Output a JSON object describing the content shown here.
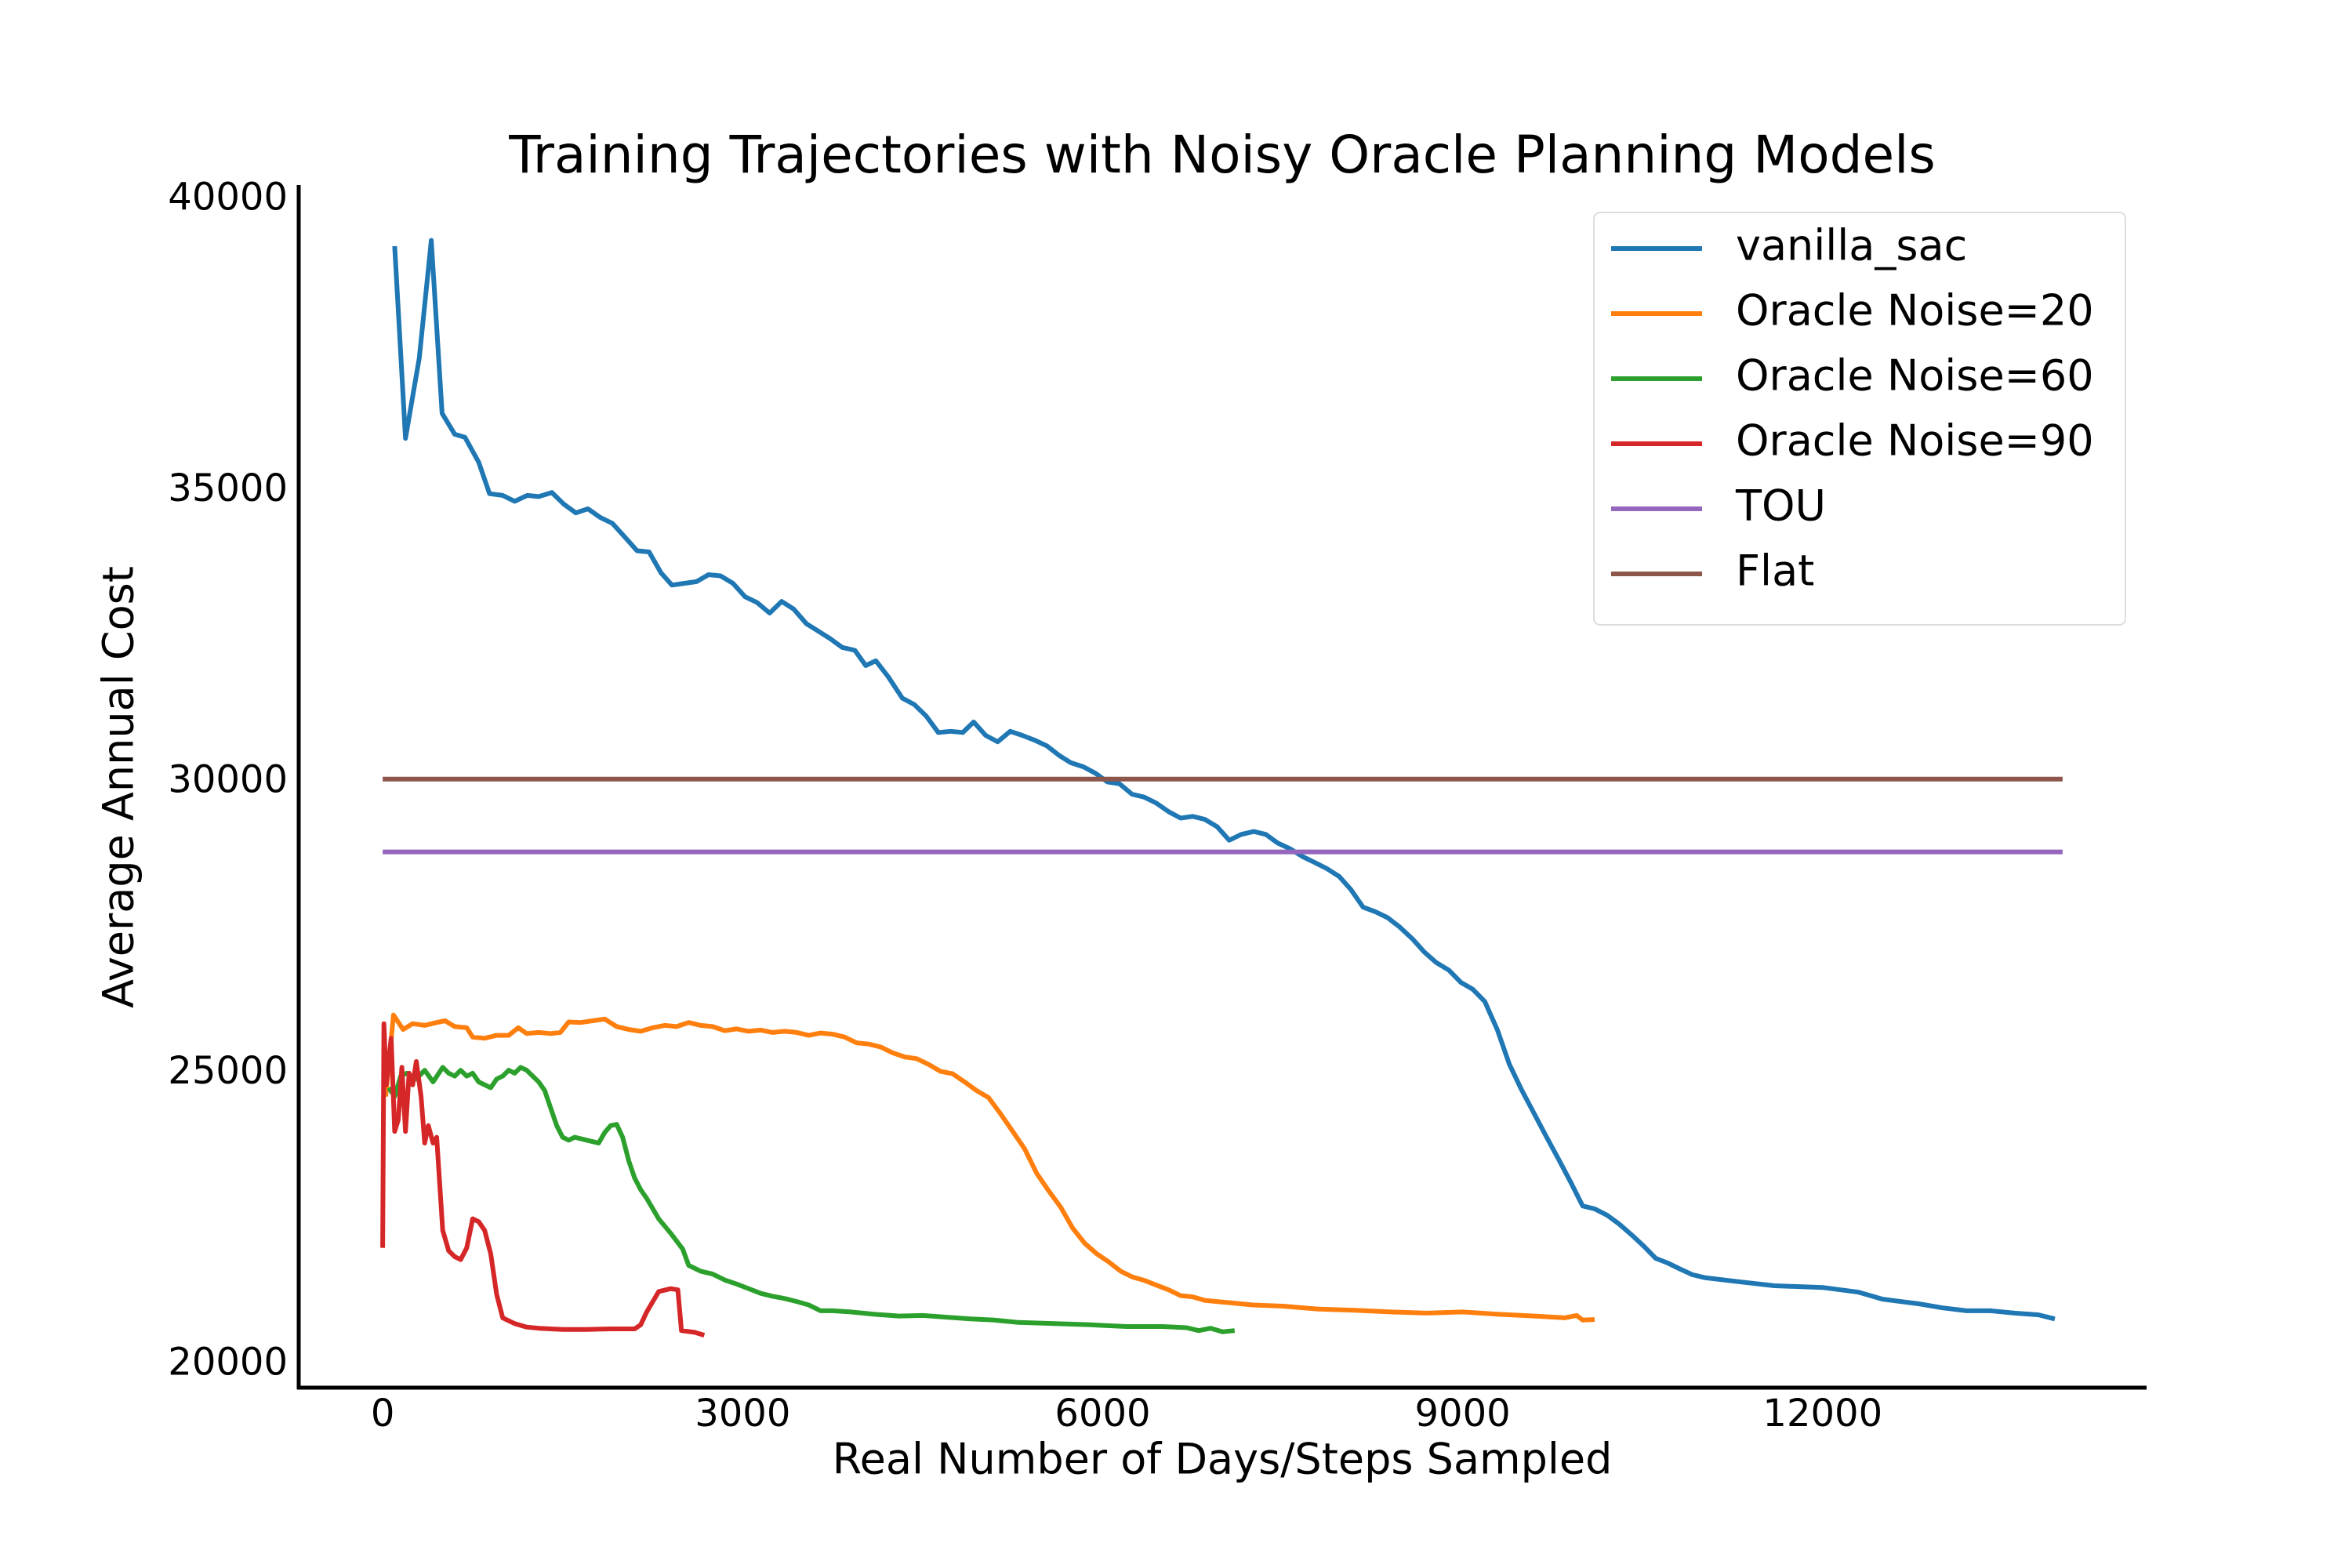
{
  "chart_data": {
    "type": "line",
    "title": "Training Trajectories with Noisy Oracle Planning Models",
    "x_label": "Real Number of Days/Steps Sampled",
    "y_label": "Average Annual Cost",
    "xlim": [
      -700,
      14700
    ],
    "ylim": [
      19600,
      40250
    ],
    "xticks": [
      0,
      3000,
      6000,
      9000,
      12000
    ],
    "yticks": [
      20000,
      25000,
      30000,
      35000,
      40000
    ],
    "grid": false,
    "legend_position": "upper right",
    "series": [
      {
        "name": "vanilla_sac",
        "color": "#1f77b4",
        "x": [
          100,
          190,
          305,
          405,
          495,
          600,
          685,
          800,
          890,
          1000,
          1100,
          1205,
          1300,
          1410,
          1510,
          1610,
          1710,
          1815,
          1915,
          2020,
          2120,
          2220,
          2320,
          2410,
          2510,
          2615,
          2715,
          2815,
          2920,
          3020,
          3120,
          3225,
          3325,
          3425,
          3530,
          3630,
          3730,
          3830,
          3935,
          4025,
          4110,
          4215,
          4330,
          4430,
          4530,
          4630,
          4735,
          4835,
          4925,
          5025,
          5125,
          5230,
          5330,
          5430,
          5535,
          5635,
          5735,
          5840,
          5940,
          6040,
          6140,
          6245,
          6345,
          6445,
          6550,
          6650,
          6750,
          6850,
          6955,
          7055,
          7155,
          7260,
          7360,
          7460,
          7565,
          7665,
          7765,
          7870,
          7970,
          8070,
          8170,
          8275,
          8375,
          8475,
          8580,
          8680,
          8780,
          8885,
          8985,
          9085,
          9185,
          9290,
          9390,
          9490,
          9595,
          9695,
          9795,
          9900,
          10000,
          10100,
          10205,
          10305,
          10405,
          10510,
          10610,
          10710,
          10810,
          10915,
          11015,
          11300,
          11600,
          12000,
          12300,
          12500,
          12800,
          13000,
          13200,
          13400,
          13600,
          13800,
          13935
        ],
        "values": [
          39200,
          35900,
          37280,
          39300,
          36330,
          35970,
          35920,
          35490,
          34950,
          34920,
          34820,
          34920,
          34900,
          34970,
          34770,
          34620,
          34690,
          34540,
          34440,
          34200,
          33970,
          33950,
          33590,
          33380,
          33410,
          33440,
          33560,
          33540,
          33410,
          33180,
          33080,
          32900,
          33100,
          32970,
          32720,
          32590,
          32460,
          32310,
          32260,
          32000,
          32080,
          31800,
          31440,
          31330,
          31130,
          30850,
          30870,
          30850,
          31030,
          30800,
          30690,
          30870,
          30800,
          30720,
          30620,
          30460,
          30330,
          30260,
          30150,
          30000,
          29970,
          29790,
          29740,
          29640,
          29490,
          29380,
          29410,
          29360,
          29230,
          29000,
          29100,
          29150,
          29100,
          28950,
          28850,
          28720,
          28620,
          28510,
          28380,
          28150,
          27850,
          27770,
          27670,
          27510,
          27310,
          27080,
          26900,
          26770,
          26560,
          26440,
          26230,
          25740,
          25150,
          24720,
          24310,
          23920,
          23540,
          23130,
          22720,
          22670,
          22560,
          22410,
          22230,
          22030,
          21820,
          21740,
          21640,
          21540,
          21490,
          21420,
          21350,
          21320,
          21240,
          21120,
          21040,
          20970,
          20920,
          20920,
          20880,
          20850,
          20780
        ]
      },
      {
        "name": "Oracle Noise=20",
        "color": "#ff7f0e",
        "x": [
          25,
          90,
          170,
          250,
          350,
          450,
          520,
          600,
          700,
          750,
          850,
          950,
          1050,
          1130,
          1200,
          1300,
          1400,
          1480,
          1550,
          1650,
          1750,
          1850,
          1950,
          2050,
          2150,
          2250,
          2350,
          2450,
          2550,
          2650,
          2750,
          2850,
          2950,
          3050,
          3150,
          3250,
          3350,
          3450,
          3550,
          3650,
          3750,
          3850,
          3950,
          4050,
          4150,
          4250,
          4350,
          4450,
          4550,
          4650,
          4750,
          4850,
          4950,
          5050,
          5150,
          5250,
          5350,
          5450,
          5550,
          5650,
          5750,
          5850,
          5950,
          6050,
          6150,
          6250,
          6350,
          6450,
          6550,
          6650,
          6750,
          6850,
          6950,
          7050,
          7250,
          7500,
          7800,
          8100,
          8400,
          8700,
          9000,
          9300,
          9600,
          9850,
          9950,
          10000,
          10100
        ],
        "values": [
          24600,
          26000,
          25750,
          25850,
          25820,
          25870,
          25900,
          25800,
          25780,
          25620,
          25600,
          25650,
          25650,
          25780,
          25680,
          25700,
          25680,
          25700,
          25880,
          25870,
          25900,
          25930,
          25800,
          25750,
          25720,
          25780,
          25820,
          25800,
          25870,
          25820,
          25800,
          25730,
          25760,
          25720,
          25740,
          25700,
          25720,
          25700,
          25650,
          25690,
          25670,
          25620,
          25520,
          25500,
          25450,
          25350,
          25280,
          25250,
          25150,
          25030,
          24990,
          24850,
          24700,
          24580,
          24300,
          24000,
          23700,
          23280,
          22980,
          22700,
          22340,
          22080,
          21900,
          21760,
          21600,
          21500,
          21440,
          21360,
          21280,
          21180,
          21160,
          21100,
          21080,
          21060,
          21020,
          21000,
          20950,
          20930,
          20900,
          20880,
          20900,
          20860,
          20830,
          20800,
          20840,
          20760,
          20770
        ]
      },
      {
        "name": "Oracle Noise=60",
        "color": "#2ca02c",
        "x": [
          50,
          100,
          150,
          200,
          280,
          350,
          420,
          500,
          550,
          600,
          650,
          700,
          750,
          800,
          850,
          900,
          950,
          1000,
          1050,
          1100,
          1150,
          1200,
          1250,
          1300,
          1350,
          1400,
          1450,
          1500,
          1550,
          1600,
          1700,
          1800,
          1850,
          1900,
          1950,
          2000,
          2050,
          2100,
          2150,
          2200,
          2300,
          2400,
          2500,
          2550,
          2650,
          2750,
          2850,
          2950,
          3050,
          3150,
          3250,
          3350,
          3450,
          3550,
          3650,
          3750,
          3900,
          4100,
          4300,
          4500,
          4700,
          4900,
          5100,
          5300,
          5600,
          5900,
          6200,
          6500,
          6700,
          6800,
          6900,
          7000,
          7100
        ],
        "values": [
          24750,
          24600,
          24950,
          25000,
          24900,
          25050,
          24850,
          25100,
          25000,
          24950,
          25050,
          24950,
          25000,
          24850,
          24800,
          24750,
          24900,
          24950,
          25050,
          25000,
          25100,
          25050,
          24950,
          24850,
          24700,
          24400,
          24100,
          23900,
          23850,
          23900,
          23850,
          23800,
          23980,
          24100,
          24120,
          23900,
          23500,
          23200,
          23000,
          22850,
          22500,
          22250,
          21980,
          21700,
          21600,
          21550,
          21450,
          21380,
          21300,
          21220,
          21170,
          21130,
          21080,
          21020,
          20920,
          20920,
          20900,
          20860,
          20830,
          20840,
          20810,
          20780,
          20760,
          20720,
          20700,
          20680,
          20650,
          20650,
          20630,
          20580,
          20620,
          20560,
          20580
        ]
      },
      {
        "name": "Oracle Noise=90",
        "color": "#d62728",
        "x": [
          0,
          10,
          30,
          70,
          100,
          130,
          160,
          190,
          220,
          250,
          280,
          320,
          350,
          380,
          420,
          450,
          500,
          550,
          600,
          650,
          700,
          750,
          800,
          850,
          900,
          950,
          1000,
          1100,
          1200,
          1300,
          1500,
          1700,
          1900,
          2100,
          2150,
          2200,
          2300,
          2400,
          2460,
          2490,
          2600,
          2680
        ],
        "values": [
          22000,
          25850,
          24800,
          25600,
          24000,
          24200,
          25100,
          24000,
          25000,
          24800,
          25200,
          24600,
          23800,
          24100,
          23800,
          23900,
          22300,
          21950,
          21850,
          21800,
          22000,
          22500,
          22450,
          22300,
          21900,
          21200,
          20800,
          20700,
          20640,
          20620,
          20600,
          20600,
          20610,
          20610,
          20680,
          20900,
          21250,
          21300,
          21280,
          20580,
          20550,
          20500
        ]
      },
      {
        "name": "TOU",
        "color": "#9467bd",
        "x": [
          0,
          14000
        ],
        "values": [
          28800,
          28800
        ]
      },
      {
        "name": "Flat",
        "color": "#8c564b",
        "x": [
          0,
          14000
        ],
        "values": [
          30050,
          30050
        ]
      }
    ]
  }
}
